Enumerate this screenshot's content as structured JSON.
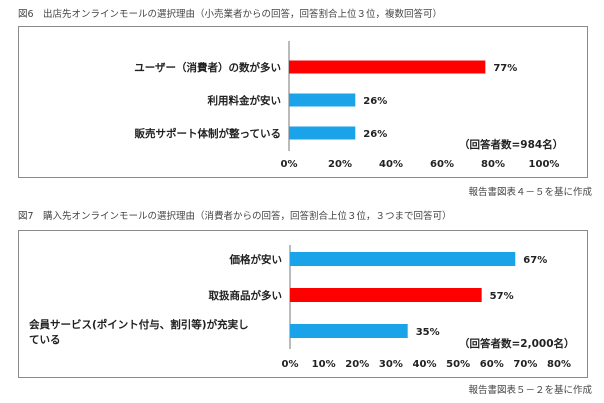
{
  "chart_data": [
    {
      "type": "bar",
      "orientation": "horizontal",
      "title": "図6　出店先オンラインモールの選択理由（小売業者からの回答，回答割合上位３位，複数回答可）",
      "categories": [
        "ユーザー（消費者）の数が多い",
        "利用料金が安い",
        "販売サポート体制が整っている"
      ],
      "values": [
        77,
        26,
        26
      ],
      "value_labels": [
        "77%",
        "26%",
        "26%"
      ],
      "colors": [
        "#ff0000",
        "#1aa3e8",
        "#1aa3e8"
      ],
      "xlim": [
        0,
        100
      ],
      "xticks": [
        "0%",
        "20%",
        "40%",
        "60%",
        "80%",
        "100%"
      ],
      "note": "（回答者数=984名）",
      "source": "報告書図表４－５を基に作成",
      "grid": false,
      "legend": "none"
    },
    {
      "type": "bar",
      "orientation": "horizontal",
      "title": "図7　購入先オンラインモールの選択理由（消費者からの回答，回答割合上位３位，３つまで回答可）",
      "categories": [
        "価格が安い",
        "取扱商品が多い",
        "会員サービス(ポイント付与、割引等)が充実している"
      ],
      "category_lines": [
        [
          "価格が安い"
        ],
        [
          "取扱商品が多い"
        ],
        [
          "会員サービス(ポイント付与、割引等)が充実し",
          "ている"
        ]
      ],
      "values": [
        67,
        57,
        35
      ],
      "value_labels": [
        "67%",
        "57%",
        "35%"
      ],
      "colors": [
        "#1aa3e8",
        "#ff0000",
        "#1aa3e8"
      ],
      "xlim": [
        0,
        80
      ],
      "xticks": [
        "0%",
        "10%",
        "20%",
        "30%",
        "40%",
        "50%",
        "60%",
        "70%",
        "80%"
      ],
      "note": "（回答者数=2,000名）",
      "source": "報告書図表５－２を基に作成",
      "grid": false,
      "legend": "none"
    }
  ]
}
